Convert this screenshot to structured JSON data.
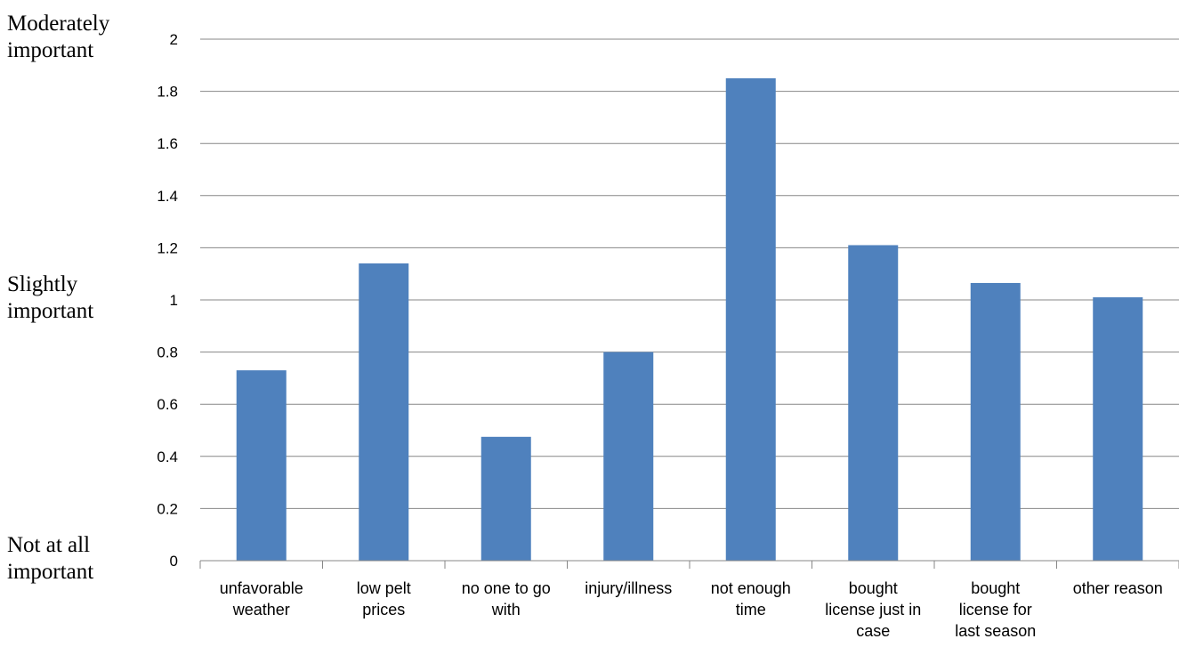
{
  "chart_data": {
    "type": "bar",
    "title": "",
    "xlabel": "",
    "ylabel": "",
    "ylim": [
      0,
      2
    ],
    "yticks": [
      0,
      0.2,
      0.4,
      0.6,
      0.8,
      1,
      1.2,
      1.4,
      1.6,
      1.8,
      2
    ],
    "ytick_labels": [
      "0",
      "0.2",
      "0.4",
      "0.6",
      "0.8",
      "1",
      "1.2",
      "1.4",
      "1.6",
      "1.8",
      "2"
    ],
    "grid": true,
    "bar_color": "#4F81BD",
    "grid_color": "#878787",
    "categories": [
      [
        "unfavorable",
        "weather"
      ],
      [
        "low pelt",
        "prices"
      ],
      [
        "no one to go",
        "with"
      ],
      [
        "injury/illness"
      ],
      [
        "not enough",
        "time"
      ],
      [
        "bought",
        "license just in",
        "case"
      ],
      [
        "bought",
        "license for",
        "last season"
      ],
      [
        "other reason"
      ]
    ],
    "values": [
      0.73,
      1.14,
      0.475,
      0.8,
      1.85,
      1.21,
      1.065,
      1.01
    ],
    "scale_labels": [
      {
        "lines": [
          "Moderately",
          "important"
        ],
        "value": 2
      },
      {
        "lines": [
          "Slightly",
          "important"
        ],
        "value": 1
      },
      {
        "lines": [
          "Not at all",
          "important"
        ],
        "value": 0
      }
    ]
  }
}
